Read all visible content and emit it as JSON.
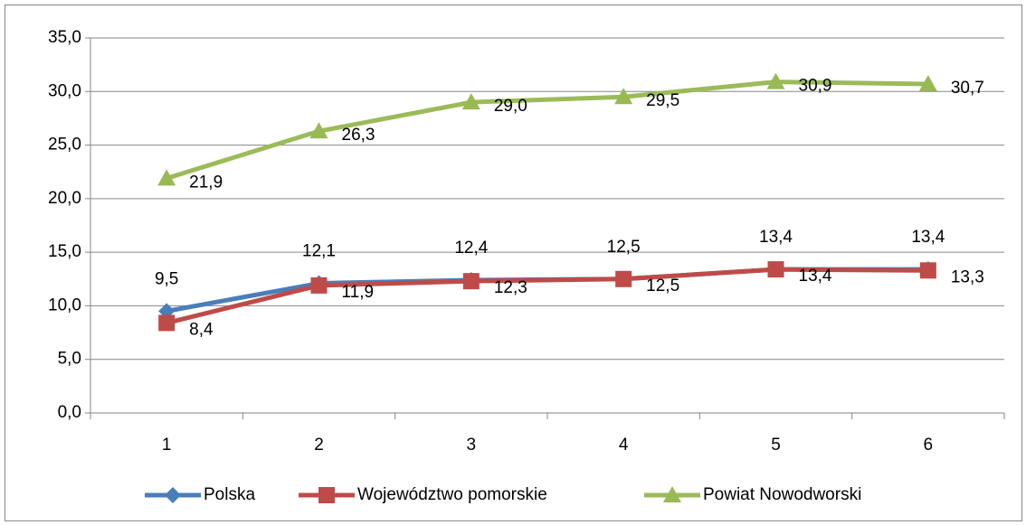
{
  "chart_data": {
    "type": "line",
    "categories": [
      "1",
      "2",
      "3",
      "4",
      "5",
      "6"
    ],
    "series": [
      {
        "name": "Polska",
        "color": "#4a7ebb",
        "marker": "diamond",
        "values": [
          9.5,
          12.1,
          12.4,
          12.5,
          13.4,
          13.4
        ],
        "value_labels": [
          "9,5",
          "12,1",
          "12,4",
          "12,5",
          "13,4",
          "13,4"
        ]
      },
      {
        "name": "Województwo pomorskie",
        "color": "#be4b48",
        "marker": "square",
        "values": [
          8.4,
          11.9,
          12.3,
          12.5,
          13.4,
          13.3
        ],
        "value_labels": [
          "8,4",
          "11,9",
          "12,3",
          "12,5",
          "13,4",
          "13,3"
        ]
      },
      {
        "name": "Powiat Nowodworski",
        "color": "#9bbb59",
        "marker": "triangle",
        "values": [
          21.9,
          26.3,
          29.0,
          29.5,
          30.9,
          30.7
        ],
        "value_labels": [
          "21,9",
          "26,3",
          "29,0",
          "29,5",
          "30,9",
          "30,7"
        ]
      }
    ],
    "ylim": [
      0,
      35
    ],
    "yticks": [
      {
        "value": 0,
        "label": "0,0"
      },
      {
        "value": 5,
        "label": "5,0"
      },
      {
        "value": 10,
        "label": "10,0"
      },
      {
        "value": 15,
        "label": "15,0"
      },
      {
        "value": 20,
        "label": "20,0"
      },
      {
        "value": 25,
        "label": "25,0"
      },
      {
        "value": 30,
        "label": "30,0"
      },
      {
        "value": 35,
        "label": "35,0"
      }
    ],
    "grid": true,
    "legend": "bottom"
  }
}
